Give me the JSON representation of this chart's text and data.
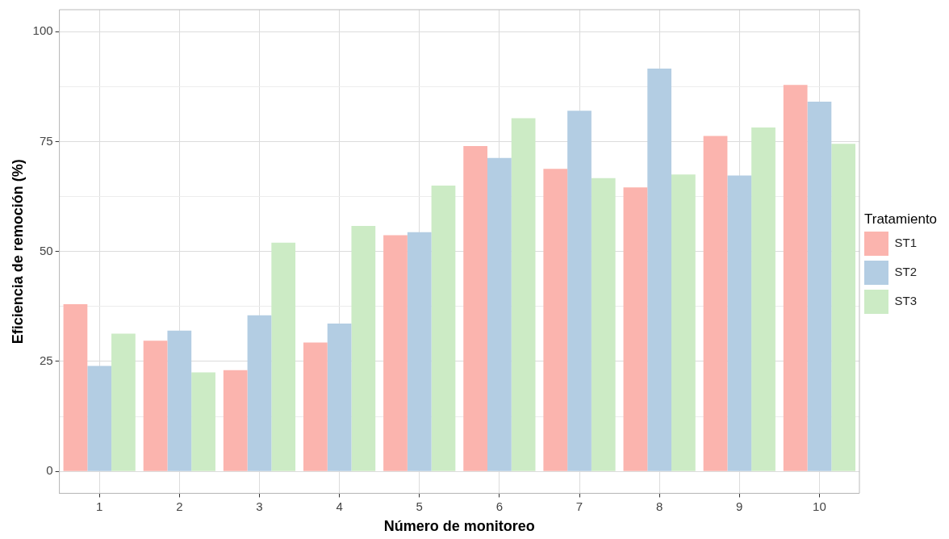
{
  "chart_data": {
    "type": "bar",
    "xlabel": "Número de monitoreo",
    "ylabel": "Eficiencia de remoción (%)",
    "legend_title": "Tratamiento",
    "legend": "right",
    "grid": true,
    "categories": [
      "1",
      "2",
      "3",
      "4",
      "5",
      "6",
      "7",
      "8",
      "9",
      "10"
    ],
    "ylim": [
      -5,
      105
    ],
    "yticks": [
      0,
      {
        "value": 12.5,
        "label": null
      },
      25,
      {
        "value": 37.5,
        "label": null
      },
      50,
      {
        "value": 62.5,
        "label": null
      },
      75,
      {
        "value": 87.5,
        "label": null
      },
      100
    ],
    "series": [
      {
        "name": "ST1",
        "color": "#fbb4ae",
        "values": [
          38,
          29.7,
          23,
          29.3,
          53.7,
          74,
          68.8,
          64.6,
          76.3,
          87.9
        ]
      },
      {
        "name": "ST2",
        "color": "#b3cde3",
        "values": [
          24,
          32,
          35.5,
          33.6,
          54.4,
          71.3,
          82,
          91.6,
          67.3,
          84.1
        ]
      },
      {
        "name": "ST3",
        "color": "#ccebc5",
        "values": [
          31.3,
          22.5,
          52,
          55.8,
          65,
          80.3,
          66.7,
          67.5,
          78.2,
          74.5
        ]
      }
    ]
  }
}
